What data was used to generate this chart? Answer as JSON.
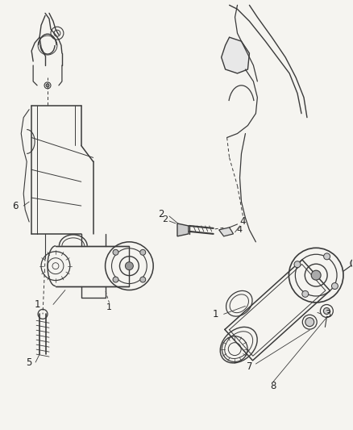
{
  "background_color": "#f5f4f0",
  "line_color": "#3a3a3a",
  "label_color": "#222222",
  "fig_width": 4.38,
  "fig_height": 5.33,
  "dpi": 100
}
